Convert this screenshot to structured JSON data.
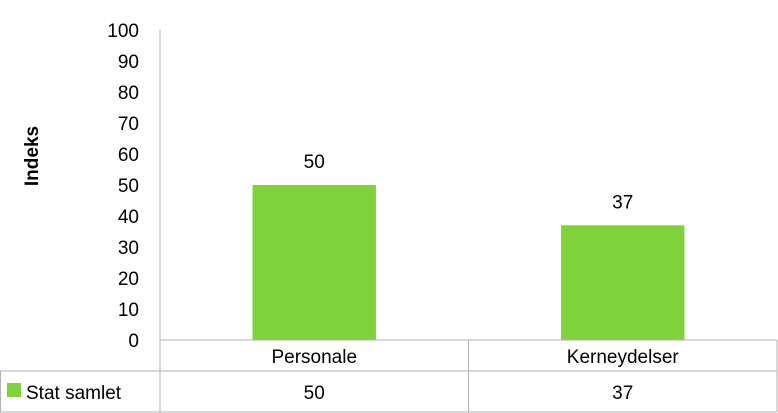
{
  "chart_data": {
    "type": "bar",
    "ylabel": "Indeks",
    "ylim": [
      0,
      100
    ],
    "yticks": [
      0,
      10,
      20,
      30,
      40,
      50,
      60,
      70,
      80,
      90,
      100
    ],
    "categories": [
      "Personale",
      "Kerneydelser"
    ],
    "series": [
      {
        "name": "Stat samlet",
        "values": [
          50,
          37
        ],
        "color": "#7ed23a"
      }
    ],
    "data_labels": true,
    "grid": false,
    "data_table": true
  }
}
